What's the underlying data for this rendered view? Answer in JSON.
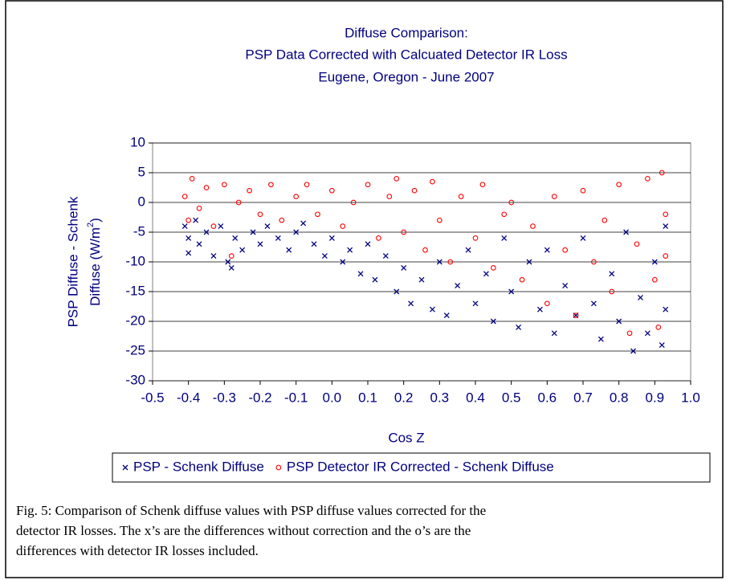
{
  "chart_data": {
    "type": "scatter",
    "title": [
      "Diffuse Comparison:",
      "PSP Data Corrected with Calcuated Detector IR Loss",
      "Eugene, Oregon - June 2007"
    ],
    "x_label": "Cos Z",
    "y_label": {
      "line1": "PSP Diffuse - Schenk",
      "line2": "Diffuse (W/m",
      "sup": "2",
      "line2_end": ")"
    },
    "xlim": [
      -0.5,
      1.0
    ],
    "xticks": [
      -0.5,
      -0.4,
      -0.3,
      -0.2,
      -0.1,
      {
        "value": 0,
        "label": "0.0"
      },
      0.1,
      0.2,
      0.3,
      0.4,
      0.5,
      0.6,
      0.7,
      0.8,
      0.9,
      {
        "value": 1,
        "label": "1.0"
      }
    ],
    "ylim": [
      -30,
      10
    ],
    "yticks": [
      -30,
      -25,
      -20,
      -15,
      -10,
      -5,
      0,
      5,
      10
    ],
    "grid": true,
    "legend": "bottom",
    "series": [
      {
        "name": "PSP - Schenk Diffuse",
        "color": "#000080",
        "marker": "x",
        "x": [
          -0.41,
          -0.4,
          -0.4,
          -0.38,
          -0.37,
          -0.35,
          -0.33,
          -0.31,
          -0.29,
          -0.28,
          -0.27,
          -0.25,
          -0.22,
          -0.2,
          -0.18,
          -0.15,
          -0.12,
          -0.1,
          -0.08,
          -0.05,
          -0.02,
          0.0,
          0.03,
          0.05,
          0.08,
          0.1,
          0.12,
          0.15,
          0.18,
          0.2,
          0.22,
          0.25,
          0.28,
          0.3,
          0.32,
          0.35,
          0.38,
          0.4,
          0.43,
          0.45,
          0.48,
          0.5,
          0.52,
          0.55,
          0.58,
          0.6,
          0.62,
          0.65,
          0.68,
          0.7,
          0.73,
          0.75,
          0.78,
          0.8,
          0.82,
          0.84,
          0.86,
          0.88,
          0.9,
          0.92,
          0.93,
          0.93
        ],
        "values": [
          -4,
          -6,
          -8.5,
          -3,
          -7,
          -5,
          -9,
          -4,
          -10,
          -11,
          -6,
          -8,
          -5,
          -7,
          -4,
          -6,
          -8,
          -5,
          -3.5,
          -7,
          -9,
          -6,
          -10,
          -8,
          -12,
          -7,
          -13,
          -9,
          -15,
          -11,
          -17,
          -13,
          -18,
          -10,
          -19,
          -14,
          -8,
          -17,
          -12,
          -20,
          -6,
          -15,
          -21,
          -10,
          -18,
          -8,
          -22,
          -14,
          -19,
          -6,
          -17,
          -23,
          -12,
          -20,
          -5,
          -25,
          -16,
          -22,
          -10,
          -24,
          -4,
          -18
        ]
      },
      {
        "name": "PSP Detector IR Corrected - Schenk Diffuse",
        "color": "#ff0000",
        "marker": "o",
        "x": [
          -0.41,
          -0.4,
          -0.39,
          -0.37,
          -0.35,
          -0.33,
          -0.3,
          -0.28,
          -0.26,
          -0.23,
          -0.2,
          -0.17,
          -0.14,
          -0.1,
          -0.07,
          -0.04,
          0.0,
          0.03,
          0.06,
          0.1,
          0.13,
          0.16,
          0.18,
          0.2,
          0.23,
          0.26,
          0.28,
          0.3,
          0.33,
          0.36,
          0.4,
          0.42,
          0.45,
          0.48,
          0.5,
          0.53,
          0.56,
          0.6,
          0.62,
          0.65,
          0.68,
          0.7,
          0.73,
          0.76,
          0.78,
          0.8,
          0.83,
          0.85,
          0.88,
          0.9,
          0.91,
          0.92,
          0.93,
          0.93
        ],
        "values": [
          1,
          -3,
          4,
          -1,
          2.5,
          -4,
          3,
          -9,
          0,
          2,
          -2,
          3,
          -3,
          1,
          3,
          -2,
          2,
          -4,
          0,
          3,
          -6,
          1,
          4,
          -5,
          2,
          -8,
          3.5,
          -3,
          -10,
          1,
          -6,
          3,
          -11,
          -2,
          0,
          -13,
          -4,
          -17,
          1,
          -8,
          -19,
          2,
          -10,
          -3,
          -15,
          3,
          -22,
          -7,
          4,
          -13,
          -21,
          5,
          -2,
          -9
        ]
      }
    ]
  },
  "caption": [
    "Fig. 5: Comparison of Schenk diffuse values with PSP diffuse values corrected for the",
    "detector IR losses.  The x’s are the differences without correction and the o’s are the",
    "differences with detector IR losses included."
  ]
}
